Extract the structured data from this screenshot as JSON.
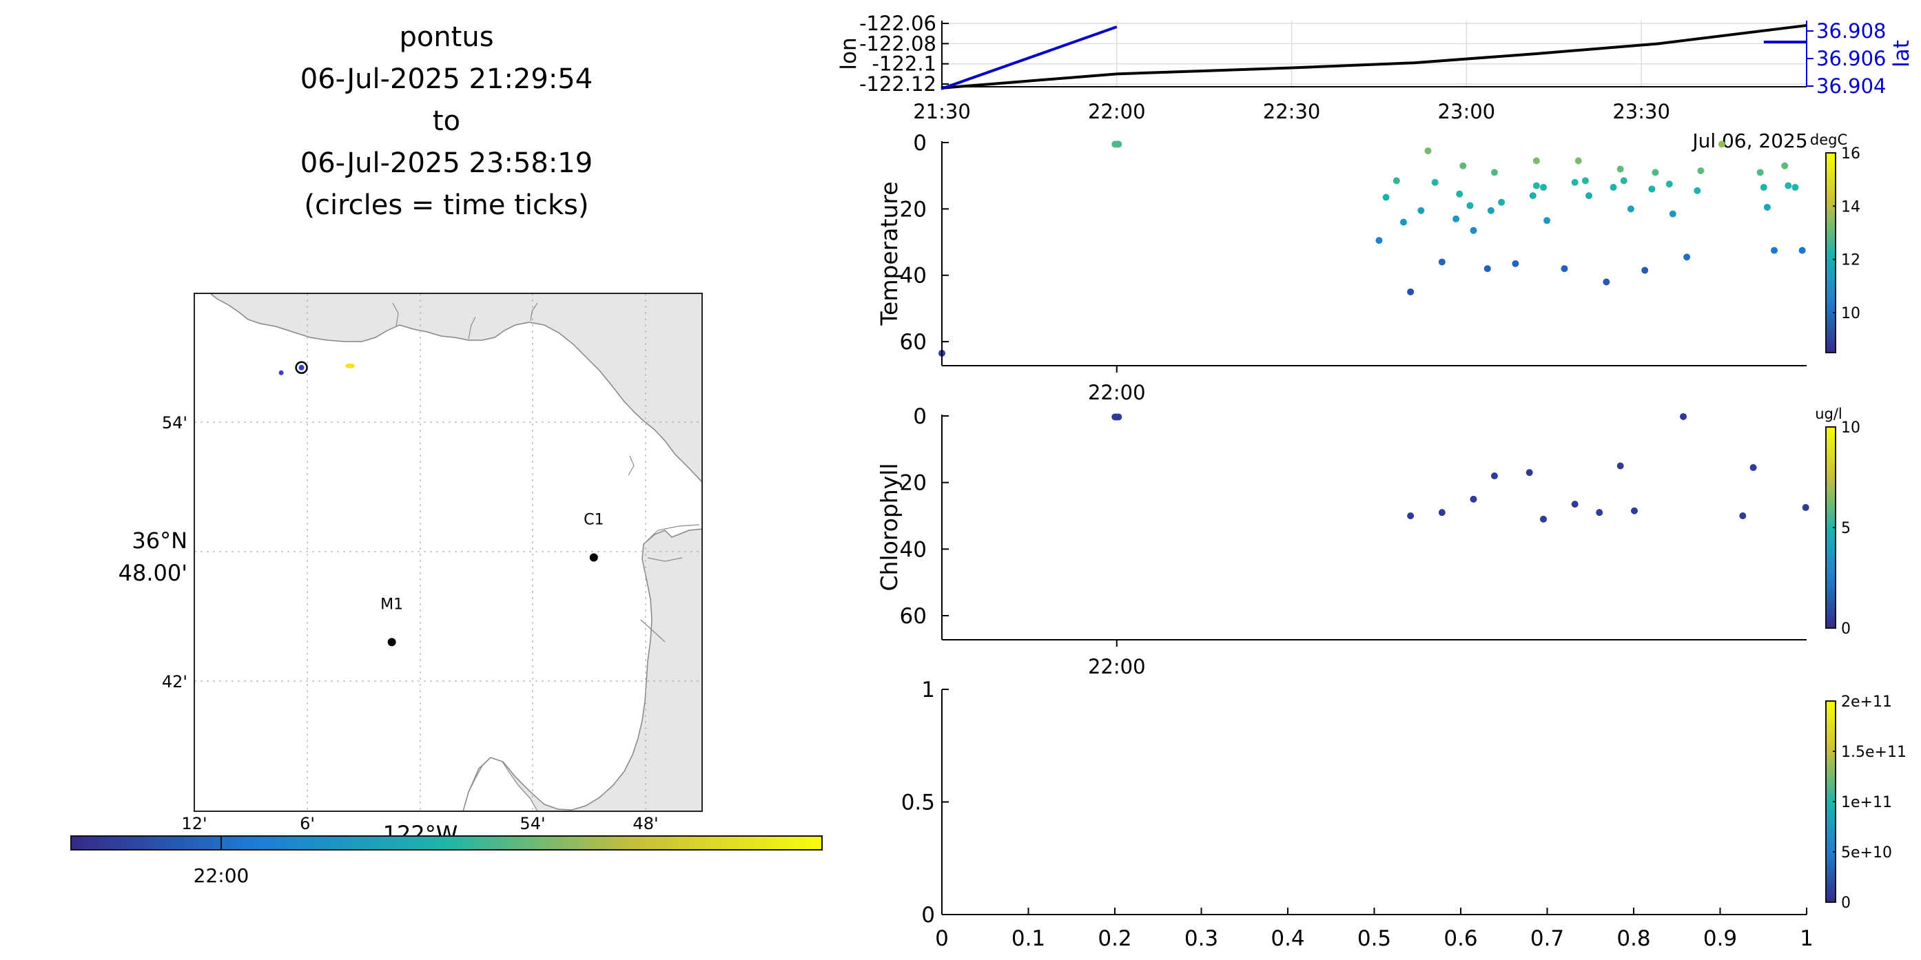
{
  "header": {
    "lines": [
      "pontus",
      "06-Jul-2025 21:29:54",
      "to",
      "06-Jul-2025 23:58:19",
      "(circles = time ticks)"
    ]
  },
  "map": {
    "lat_tick_labels": [
      "54'",
      "48.00'",
      "42'"
    ],
    "lat_degree_label": "36°N",
    "lon_tick_labels": [
      "12'",
      "6'",
      "54'",
      "48'"
    ],
    "lon_degree_label": "122°W",
    "stations": [
      {
        "name": "C1",
        "lon": -121.846,
        "lat": 36.797
      },
      {
        "name": "M1",
        "lon": -122.025,
        "lat": 36.748
      }
    ],
    "track_points": [
      {
        "lon": -122.123,
        "lat": 36.904,
        "color": "#3b3bc8",
        "kind": "start"
      },
      {
        "lon": -122.105,
        "lat": 36.907,
        "color": "#000000",
        "kind": "time-tick"
      },
      {
        "lon": -122.062,
        "lat": 36.908,
        "color": "#f5e31a",
        "kind": "end"
      }
    ],
    "xlim": [
      -122.2,
      -121.75
    ],
    "ylim": [
      36.65,
      36.95
    ],
    "time_colorbar": {
      "tick_label": "22:00",
      "tick_fraction": 0.2
    }
  },
  "chart_data": [
    {
      "type": "line",
      "title": "",
      "xlabel": "",
      "ylabel": "lon",
      "ylabel_right": "lat",
      "x_ticks": [
        "21:30",
        "22:00",
        "22:30",
        "23:00",
        "23:30"
      ],
      "yticks_left": [
        "-122.06",
        "-122.08",
        "-122.1",
        "-122.12"
      ],
      "yticks_right": [
        "36.908",
        "36.906",
        "36.904"
      ],
      "date_label": "Jul 06, 2025",
      "xlim_hours": [
        21.5,
        23.9726
      ],
      "series": [
        {
          "name": "lon",
          "color": "#000000",
          "x": [
            21.498,
            22.0,
            22.5,
            22.85,
            23.2,
            23.55,
            23.9726
          ],
          "y": [
            -122.124,
            -122.11,
            -122.104,
            -122.099,
            -122.09,
            -122.08,
            -122.062
          ]
        },
        {
          "name": "lat",
          "color": "#0000cc",
          "x": [
            21.498,
            22.0
          ],
          "y": [
            36.9038,
            36.9083
          ]
        },
        {
          "name": "lat-end",
          "color": "#0000cc",
          "x": [
            23.85,
            23.9726
          ],
          "y": [
            36.9072,
            36.9072
          ]
        }
      ]
    },
    {
      "type": "scatter",
      "ylabel": "Temperature",
      "colorbar_units": "degC",
      "colorbar_ticks": [
        "16",
        "14",
        "12",
        "10"
      ],
      "clim": [
        8.5,
        16
      ],
      "x_tick_label": "22:00",
      "yticks": [
        "0",
        "20",
        "40",
        "60"
      ],
      "ylim": [
        0,
        66
      ],
      "points": [
        {
          "x": 21.5,
          "y": 63.5,
          "c": 9.0
        },
        {
          "x": 21.995,
          "y": 0.5,
          "c": 12.8
        },
        {
          "x": 22.0,
          "y": 0.5,
          "c": 12.8
        },
        {
          "x": 22.005,
          "y": 0.5,
          "c": 12.8
        },
        {
          "x": 22.75,
          "y": 29.5,
          "c": 10.5
        },
        {
          "x": 22.77,
          "y": 16.5,
          "c": 12.0
        },
        {
          "x": 22.8,
          "y": 11.5,
          "c": 12.5
        },
        {
          "x": 22.82,
          "y": 24.0,
          "c": 11.3
        },
        {
          "x": 22.84,
          "y": 45.0,
          "c": 9.3
        },
        {
          "x": 22.87,
          "y": 20.5,
          "c": 11.5
        },
        {
          "x": 22.89,
          "y": 2.5,
          "c": 13.2
        },
        {
          "x": 22.91,
          "y": 12.0,
          "c": 12.3
        },
        {
          "x": 22.93,
          "y": 36.0,
          "c": 9.8
        },
        {
          "x": 22.97,
          "y": 23.0,
          "c": 11.3
        },
        {
          "x": 22.98,
          "y": 15.5,
          "c": 12.2
        },
        {
          "x": 22.99,
          "y": 7.0,
          "c": 13.0
        },
        {
          "x": 23.01,
          "y": 19.0,
          "c": 12.0
        },
        {
          "x": 23.02,
          "y": 26.5,
          "c": 10.9
        },
        {
          "x": 23.06,
          "y": 38.0,
          "c": 9.7
        },
        {
          "x": 23.07,
          "y": 20.5,
          "c": 11.5
        },
        {
          "x": 23.08,
          "y": 9.0,
          "c": 12.8
        },
        {
          "x": 23.1,
          "y": 18.0,
          "c": 12.0
        },
        {
          "x": 23.14,
          "y": 36.5,
          "c": 9.8
        },
        {
          "x": 23.19,
          "y": 16.0,
          "c": 12.0
        },
        {
          "x": 23.2,
          "y": 5.5,
          "c": 13.3
        },
        {
          "x": 23.2,
          "y": 13.0,
          "c": 12.3
        },
        {
          "x": 23.22,
          "y": 13.5,
          "c": 12.2
        },
        {
          "x": 23.23,
          "y": 23.5,
          "c": 11.2
        },
        {
          "x": 23.28,
          "y": 38.0,
          "c": 9.7
        },
        {
          "x": 23.31,
          "y": 12.0,
          "c": 12.3
        },
        {
          "x": 23.32,
          "y": 5.5,
          "c": 13.3
        },
        {
          "x": 23.34,
          "y": 11.5,
          "c": 12.4
        },
        {
          "x": 23.35,
          "y": 16.0,
          "c": 12.0
        },
        {
          "x": 23.4,
          "y": 42.0,
          "c": 9.5
        },
        {
          "x": 23.42,
          "y": 13.5,
          "c": 12.2
        },
        {
          "x": 23.44,
          "y": 8.0,
          "c": 13.0
        },
        {
          "x": 23.45,
          "y": 11.5,
          "c": 12.4
        },
        {
          "x": 23.47,
          "y": 20.0,
          "c": 11.5
        },
        {
          "x": 23.51,
          "y": 38.5,
          "c": 9.6
        },
        {
          "x": 23.53,
          "y": 14.0,
          "c": 12.2
        },
        {
          "x": 23.54,
          "y": 9.0,
          "c": 12.8
        },
        {
          "x": 23.58,
          "y": 12.5,
          "c": 12.3
        },
        {
          "x": 23.59,
          "y": 21.5,
          "c": 11.3
        },
        {
          "x": 23.63,
          "y": 34.5,
          "c": 10.0
        },
        {
          "x": 23.66,
          "y": 14.5,
          "c": 12.1
        },
        {
          "x": 23.67,
          "y": 8.5,
          "c": 13.0
        },
        {
          "x": 23.84,
          "y": 9.0,
          "c": 12.8
        },
        {
          "x": 23.85,
          "y": 13.5,
          "c": 12.2
        },
        {
          "x": 23.86,
          "y": 19.5,
          "c": 11.6
        },
        {
          "x": 23.88,
          "y": 32.5,
          "c": 10.2
        },
        {
          "x": 23.91,
          "y": 7.0,
          "c": 13.0
        },
        {
          "x": 23.92,
          "y": 13.0,
          "c": 12.3
        },
        {
          "x": 23.94,
          "y": 13.5,
          "c": 12.2
        },
        {
          "x": 23.96,
          "y": 32.5,
          "c": 10.2
        },
        {
          "x": 23.73,
          "y": 0.5,
          "c": 13.6
        }
      ]
    },
    {
      "type": "scatter",
      "ylabel": "Chlorophyll",
      "colorbar_units": "ug/l",
      "colorbar_ticks": [
        "10",
        "5",
        "0"
      ],
      "clim": [
        0,
        10
      ],
      "x_tick_label": "22:00",
      "yticks": [
        "0",
        "20",
        "40",
        "60"
      ],
      "ylim": [
        0,
        66
      ],
      "points": [
        {
          "x": 21.995,
          "y": 0.3,
          "c": 0.5
        },
        {
          "x": 22.0,
          "y": 0.3,
          "c": 0.5
        },
        {
          "x": 22.005,
          "y": 0.3,
          "c": 0.5
        },
        {
          "x": 22.84,
          "y": 30.0,
          "c": 0.5
        },
        {
          "x": 22.93,
          "y": 29.0,
          "c": 0.5
        },
        {
          "x": 23.02,
          "y": 25.0,
          "c": 0.5
        },
        {
          "x": 23.08,
          "y": 18.0,
          "c": 0.5
        },
        {
          "x": 23.18,
          "y": 17.0,
          "c": 0.5
        },
        {
          "x": 23.22,
          "y": 31.0,
          "c": 0.5
        },
        {
          "x": 23.31,
          "y": 26.5,
          "c": 0.5
        },
        {
          "x": 23.38,
          "y": 29.0,
          "c": 0.5
        },
        {
          "x": 23.44,
          "y": 15.0,
          "c": 0.5
        },
        {
          "x": 23.48,
          "y": 28.5,
          "c": 0.5
        },
        {
          "x": 23.62,
          "y": 0.2,
          "c": 0.5
        },
        {
          "x": 23.79,
          "y": 30.0,
          "c": 0.5
        },
        {
          "x": 23.82,
          "y": 15.5,
          "c": 0.5
        },
        {
          "x": 23.97,
          "y": 27.5,
          "c": 0.5
        }
      ]
    },
    {
      "type": "scatter",
      "ylabel": "",
      "colorbar_ticks": [
        "2e+11",
        "1.5e+11",
        "1e+11",
        "5e+10",
        "0"
      ],
      "xticks": [
        "0",
        "0.1",
        "0.2",
        "0.3",
        "0.4",
        "0.5",
        "0.6",
        "0.7",
        "0.8",
        "0.9",
        "1"
      ],
      "yticks": [
        "1",
        "0.5",
        "0"
      ],
      "xlim": [
        0,
        1
      ],
      "ylim": [
        0,
        1
      ],
      "points": []
    }
  ]
}
